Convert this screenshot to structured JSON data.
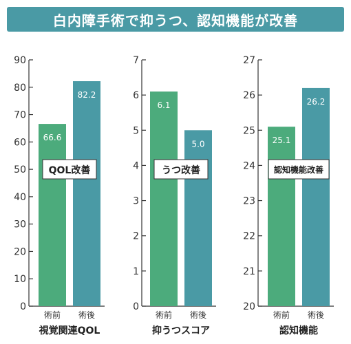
{
  "header": {
    "title": "白内障手術で抑うつ、認知機能が改善"
  },
  "colors": {
    "banner": "#4a9aa5",
    "before": "#4cab7c",
    "after": "#4a9aa5"
  },
  "chart_data": [
    {
      "type": "bar",
      "categories": [
        "術前",
        "術後"
      ],
      "values": [
        66.6,
        82.2
      ],
      "value_labels": [
        "66.6",
        "82.2"
      ],
      "title": "視覚関連QOL",
      "annotation": "QOL改善",
      "ylim": [
        0,
        90
      ],
      "yticks": [
        0,
        10,
        20,
        30,
        40,
        50,
        60,
        70,
        80,
        90
      ],
      "grid": false
    },
    {
      "type": "bar",
      "categories": [
        "術前",
        "術後"
      ],
      "values": [
        6.1,
        5.0
      ],
      "value_labels": [
        "6.1",
        "5.0"
      ],
      "title": "抑うつスコア",
      "annotation": "うつ改善",
      "ylim": [
        0,
        7
      ],
      "yticks": [
        0,
        1,
        2,
        3,
        4,
        5,
        6,
        7
      ],
      "grid": false
    },
    {
      "type": "bar",
      "categories": [
        "術前",
        "術後"
      ],
      "values": [
        25.1,
        26.2
      ],
      "value_labels": [
        "25.1",
        "26.2"
      ],
      "title": "認知機能",
      "annotation": "認知機能改善",
      "ylim": [
        20,
        27
      ],
      "yticks": [
        20,
        21,
        22,
        23,
        24,
        25,
        26,
        27
      ],
      "grid": false
    }
  ]
}
